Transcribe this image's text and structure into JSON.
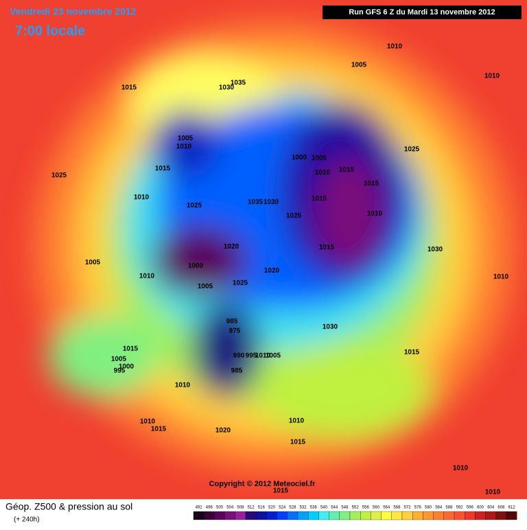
{
  "header": {
    "date": "Vendredi 23 novembre 2012",
    "time": "7:00 locale",
    "run": "Run GFS 6 Z du Mardi 13 novembre 2012"
  },
  "map": {
    "pressure_labels": [
      "1010",
      "1005",
      "1010",
      "1035",
      "1030",
      "1015",
      "1005",
      "1010",
      "1025",
      "1000",
      "1005",
      "1015",
      "1010",
      "1015",
      "1025",
      "1015",
      "1010",
      "1035",
      "1030",
      "1015",
      "1025",
      "1025",
      "1010",
      "1020",
      "1015",
      "1030",
      "1005",
      "1000",
      "1020",
      "1010",
      "1010",
      "1025",
      "1005",
      "1030",
      "985",
      "975",
      "1015",
      "1015",
      "990",
      "995",
      "1010",
      "1005",
      "1005",
      "1000",
      "995",
      "985",
      "1010",
      "1010",
      "1015",
      "1020",
      "1010",
      "1015",
      "1010",
      "1010",
      "1015"
    ],
    "copyright": "Copyright © 2012 Meteociel.fr"
  },
  "footer": {
    "product": "Géop. Z500 & pression au sol",
    "lead": "(+ 240h)",
    "scale": [
      492,
      496,
      500,
      504,
      508,
      512,
      516,
      520,
      524,
      528,
      532,
      536,
      540,
      544,
      548,
      552,
      556,
      560,
      564,
      568,
      572,
      576,
      580,
      584,
      588,
      592,
      596,
      600,
      604,
      608,
      612
    ],
    "scale_colors": [
      "#1a001a",
      "#3a003a",
      "#5a005a",
      "#7a107a",
      "#9a209a",
      "#2a0a7a",
      "#1010a0",
      "#0020d0",
      "#0040ff",
      "#0070ff",
      "#00a0ff",
      "#00d0ff",
      "#40f0f0",
      "#60f0b0",
      "#80f080",
      "#a0f060",
      "#c0f040",
      "#e0f040",
      "#ffff40",
      "#ffe840",
      "#ffd040",
      "#ffb030",
      "#ff9830",
      "#ff8030",
      "#ff6830",
      "#ff5030",
      "#f03828",
      "#d02020",
      "#b01818",
      "#801010",
      "#500808"
    ]
  }
}
